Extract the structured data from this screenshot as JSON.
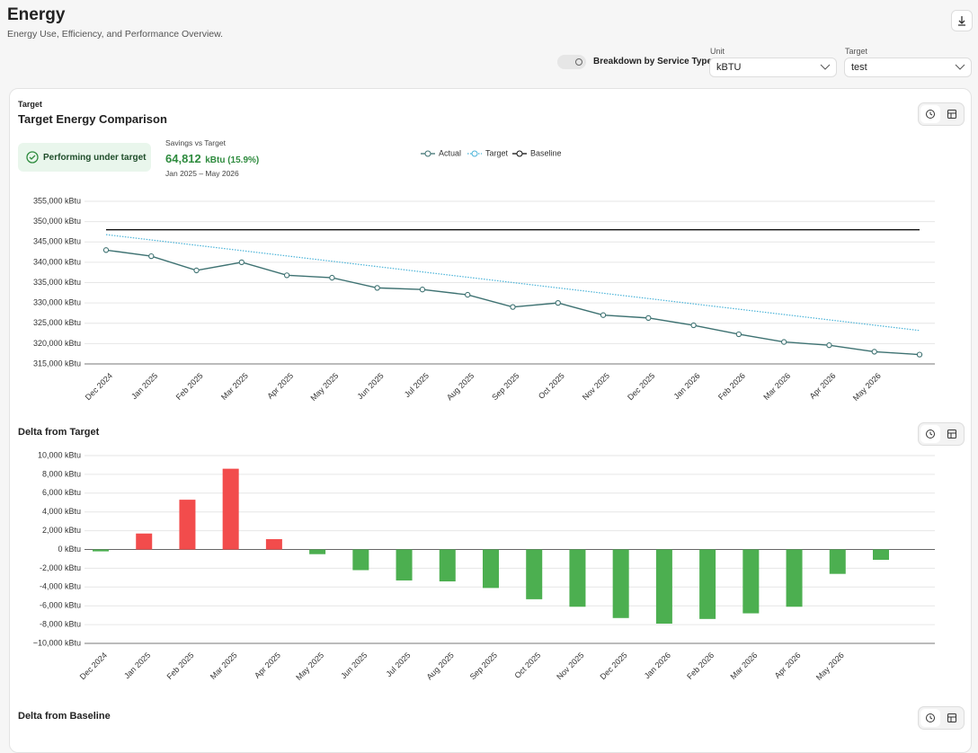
{
  "header": {
    "title": "Energy",
    "subtitle": "Energy Use, Efficiency, and Performance Overview."
  },
  "controls": {
    "toggle_label": "Breakdown by Service Type",
    "unit_label": "Unit",
    "unit_value": "kBTU",
    "target_label": "Target",
    "target_value": "test"
  },
  "card": {
    "eyebrow": "Target",
    "status": "Performing under target",
    "savings_label": "Savings vs Target",
    "savings_value": "64,812",
    "savings_unit": "kBtu (15.9%)",
    "period": "Jan 2025 – May 2026"
  },
  "chart_data": [
    {
      "type": "line",
      "title": "Target Energy Comparison",
      "categories": [
        "Dec 2024",
        "Jan 2025",
        "Feb 2025",
        "Mar 2025",
        "Apr 2025",
        "May 2025",
        "Jun 2025",
        "Jul 2025",
        "Aug 2025",
        "Sep 2025",
        "Oct 2025",
        "Nov 2025",
        "Dec 2025",
        "Jan 2026",
        "Feb 2026",
        "Mar 2026",
        "Apr 2026",
        "May 2026",
        null
      ],
      "series": [
        {
          "name": "Actual",
          "color": "#3e7272",
          "style": "solid",
          "markers": true,
          "values": [
            343000,
            341500,
            338000,
            340000,
            336800,
            336200,
            333700,
            333300,
            332000,
            329000,
            330000,
            327000,
            326300,
            324500,
            322300,
            320400,
            319600,
            318000,
            317300
          ]
        },
        {
          "name": "Target",
          "color": "#4ab3d8",
          "style": "dotted",
          "markers": false,
          "values": [
            346800,
            345490,
            344180,
            342870,
            341560,
            340250,
            338940,
            337630,
            336320,
            335010,
            333700,
            332390,
            331080,
            329770,
            328460,
            327150,
            325840,
            324530,
            323220
          ]
        },
        {
          "name": "Baseline",
          "color": "#111111",
          "style": "solid",
          "markers": false,
          "values": [
            348000,
            348000,
            348000,
            348000,
            348000,
            348000,
            348000,
            348000,
            348000,
            348000,
            348000,
            348000,
            348000,
            348000,
            348000,
            348000,
            348000,
            348000,
            348000
          ]
        }
      ],
      "ylim": [
        315000,
        355000
      ],
      "yticks": [
        {
          "value": 315000,
          "label": "315,000 kBtu"
        },
        {
          "value": 320000,
          "label": "320,000 kBtu"
        },
        {
          "value": 325000,
          "label": "325,000 kBtu"
        },
        {
          "value": 330000,
          "label": "330,000 kBtu"
        },
        {
          "value": 335000,
          "label": "335,000 kBtu"
        },
        {
          "value": 340000,
          "label": "340,000 kBtu"
        },
        {
          "value": 345000,
          "label": "345,000 kBtu"
        },
        {
          "value": 350000,
          "label": "350,000 kBtu"
        },
        {
          "value": 355000,
          "label": "355,000 kBtu"
        }
      ],
      "grid": true,
      "legend": "top"
    },
    {
      "type": "bar",
      "title": "Delta from Target",
      "categories": [
        "Dec 2024",
        "Jan 2025",
        "Feb 2025",
        "Mar 2025",
        "Apr 2025",
        "May 2025",
        "Jun 2025",
        "Jul 2025",
        "Aug 2025",
        "Sep 2025",
        "Oct 2025",
        "Nov 2025",
        "Dec 2025",
        "Jan 2026",
        "Feb 2026",
        "Mar 2026",
        "Apr 2026",
        "May 2026",
        null
      ],
      "values": [
        -200,
        1700,
        5300,
        8600,
        1100,
        -500,
        -2200,
        -3300,
        -3400,
        -4100,
        -5300,
        -6100,
        -7300,
        -7900,
        -7400,
        -6800,
        -6100,
        -2600,
        -1100
      ],
      "positive_color": "#f24c4c",
      "negative_color": "#4caf50",
      "ylim": [
        -10000,
        10000
      ],
      "yticks": [
        {
          "value": -10000,
          "label": "−10,000 kBtu"
        },
        {
          "value": -8000,
          "label": "-8,000 kBtu"
        },
        {
          "value": -6000,
          "label": "-6,000 kBtu"
        },
        {
          "value": -4000,
          "label": "-4,000 kBtu"
        },
        {
          "value": -2000,
          "label": "-2,000 kBtu"
        },
        {
          "value": 0,
          "label": "0 kBtu"
        },
        {
          "value": 2000,
          "label": "2,000 kBtu"
        },
        {
          "value": 4000,
          "label": "4,000 kBtu"
        },
        {
          "value": 6000,
          "label": "6,000 kBtu"
        },
        {
          "value": 8000,
          "label": "8,000 kBtu"
        },
        {
          "value": 10000,
          "label": "10,000 kBtu"
        }
      ],
      "grid": true
    }
  ],
  "section": {
    "title": "Delta from Baseline"
  }
}
